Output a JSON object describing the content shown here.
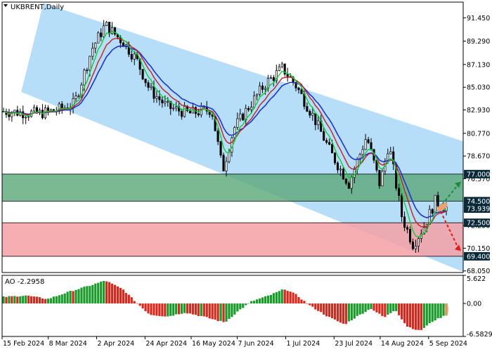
{
  "colors": {
    "channel": "#9fd3f7",
    "support_zone": "#f4a0a6",
    "resistance_zone": "#5aa878",
    "candle": "#000000",
    "ma_fast": "#19c839",
    "ma_mid": "#c0202a",
    "ma_slow": "#1e34c8",
    "ao_up": "#1a9a2a",
    "ao_down": "#d42a1e",
    "arrow_up": "#1e8a3a",
    "arrow_down": "#e01a1a",
    "highlight": "#f0a070",
    "label_bg": "#0a2a3a",
    "label_text": "#ffffff"
  },
  "chart_data": [
    {
      "type": "candlestick",
      "title": "UKBRENT,Daily",
      "ylim": [
        67.9,
        92.9
      ],
      "y_ticks": [
        "91.450",
        "89.290",
        "87.130",
        "85.030",
        "82.930",
        "80.770",
        "78.670",
        "76.570",
        "72.250",
        "70.150",
        "68.050"
      ],
      "x_ticks": [
        "15 Feb 2024",
        "8 Mar 2024",
        "2 Apr 2024",
        "24 Apr 2024",
        "16 May 2024",
        "7 Jun 2024",
        "1 Jul 2024",
        "23 Jul 2024",
        "14 Aug 2024",
        "5 Sep 2024"
      ],
      "price_labels": {
        "upper": "77.000",
        "middle_a": "74.500",
        "middle_b": "73.939",
        "lower_a": "72.500",
        "lower_b": "69.400"
      },
      "levels": {
        "resistance_zone": [
          74.5,
          77.0
        ],
        "support_zone": [
          69.4,
          72.5
        ],
        "current": 73.939
      },
      "channel": {
        "upper": [
          [
            0.04,
            84.5
          ],
          [
            1.0,
            80.0
          ]
        ],
        "note_direction": "descending",
        "upper_start": [
          0.09,
          92.8
        ],
        "upper_end": [
          1.0,
          79.9
        ],
        "lower_start": [
          0.04,
          84.6
        ],
        "lower_end": [
          1.0,
          67.8
        ]
      },
      "key_points": [
        {
          "t": 0.0,
          "p": 82.8
        },
        {
          "t": 0.08,
          "p": 82.6
        },
        {
          "t": 0.12,
          "p": 82.9
        },
        {
          "t": 0.16,
          "p": 83.5
        },
        {
          "t": 0.2,
          "p": 88.6
        },
        {
          "t": 0.23,
          "p": 90.8
        },
        {
          "t": 0.27,
          "p": 89.2
        },
        {
          "t": 0.3,
          "p": 87.6
        },
        {
          "t": 0.33,
          "p": 84.8
        },
        {
          "t": 0.37,
          "p": 83.2
        },
        {
          "t": 0.42,
          "p": 82.6
        },
        {
          "t": 0.47,
          "p": 83.0
        },
        {
          "t": 0.495,
          "p": 77.3
        },
        {
          "t": 0.52,
          "p": 81.2
        },
        {
          "t": 0.55,
          "p": 83.0
        },
        {
          "t": 0.59,
          "p": 85.3
        },
        {
          "t": 0.63,
          "p": 86.8
        },
        {
          "t": 0.66,
          "p": 85.2
        },
        {
          "t": 0.7,
          "p": 82.3
        },
        {
          "t": 0.74,
          "p": 78.9
        },
        {
          "t": 0.78,
          "p": 76.1
        },
        {
          "t": 0.82,
          "p": 80.5
        },
        {
          "t": 0.85,
          "p": 76.0
        },
        {
          "t": 0.87,
          "p": 79.8
        },
        {
          "t": 0.9,
          "p": 73.0
        },
        {
          "t": 0.925,
          "p": 70.5
        },
        {
          "t": 0.95,
          "p": 72.2
        },
        {
          "t": 0.975,
          "p": 74.5
        },
        {
          "t": 1.0,
          "p": 73.9
        }
      ],
      "bar_count": 160,
      "series": [
        {
          "name": "",
          "role": "ma_fast"
        },
        {
          "name": "",
          "role": "ma_mid"
        },
        {
          "name": "",
          "role": "ma_slow"
        }
      ]
    },
    {
      "type": "bar",
      "title": "AO -2.2958",
      "ylim": [
        -6.5829,
        5.622
      ],
      "y_ticks": [
        "5.622",
        "0.00",
        "-6.5829"
      ],
      "key_points": [
        {
          "t": 0.0,
          "v": 1.3
        },
        {
          "t": 0.05,
          "v": 1.6
        },
        {
          "t": 0.1,
          "v": 0.9
        },
        {
          "t": 0.15,
          "v": 2.4
        },
        {
          "t": 0.2,
          "v": 3.7
        },
        {
          "t": 0.23,
          "v": 4.6
        },
        {
          "t": 0.27,
          "v": 2.8
        },
        {
          "t": 0.3,
          "v": 0.2
        },
        {
          "t": 0.33,
          "v": -2.2
        },
        {
          "t": 0.37,
          "v": -2.6
        },
        {
          "t": 0.41,
          "v": -1.8
        },
        {
          "t": 0.45,
          "v": -2.6
        },
        {
          "t": 0.5,
          "v": -3.8
        },
        {
          "t": 0.53,
          "v": -1.5
        },
        {
          "t": 0.56,
          "v": 0.4
        },
        {
          "t": 0.6,
          "v": 1.6
        },
        {
          "t": 0.635,
          "v": 2.9
        },
        {
          "t": 0.66,
          "v": 1.8
        },
        {
          "t": 0.69,
          "v": -0.3
        },
        {
          "t": 0.73,
          "v": -2.5
        },
        {
          "t": 0.77,
          "v": -4.2
        },
        {
          "t": 0.8,
          "v": -2.5
        },
        {
          "t": 0.83,
          "v": -1.0
        },
        {
          "t": 0.86,
          "v": -2.8
        },
        {
          "t": 0.885,
          "v": -1.2
        },
        {
          "t": 0.91,
          "v": -4.5
        },
        {
          "t": 0.94,
          "v": -5.5
        },
        {
          "t": 0.97,
          "v": -3.5
        },
        {
          "t": 1.0,
          "v": -2.2958
        }
      ]
    }
  ]
}
